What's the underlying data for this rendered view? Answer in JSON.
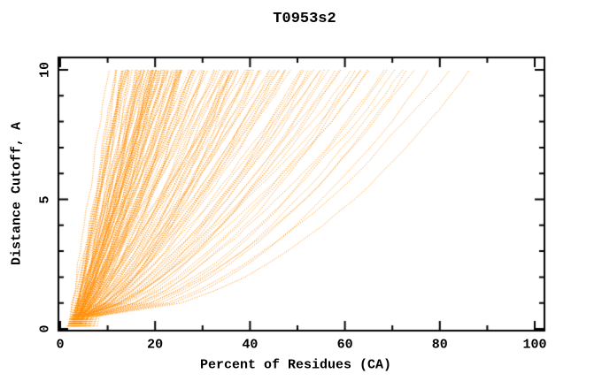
{
  "figure": {
    "title": "T0953s2"
  },
  "chart_data": {
    "type": "line",
    "title": "T0953s2",
    "xlabel": "Percent of Residues (CA)",
    "ylabel": "Distance Cutoff, A",
    "xlim": [
      0,
      102
    ],
    "ylim": [
      0,
      10.3
    ],
    "x_ticks": [
      0,
      20,
      40,
      60,
      80,
      100
    ],
    "x_minor_ticks": [
      10,
      30,
      50,
      70,
      90
    ],
    "y_ticks": [
      0,
      5,
      10
    ],
    "y_minor_ticks": [
      1,
      2,
      3,
      4,
      6,
      7,
      8,
      9
    ],
    "grid": false,
    "legend": null,
    "line_color": "#ff8c00",
    "line_style": "dotted",
    "cutoffs_A": [
      0.5,
      1.0,
      1.5,
      2.0,
      2.5,
      3.0,
      3.5,
      4.0,
      4.5,
      5.0,
      5.5,
      6.0,
      6.5,
      7.0,
      7.5,
      8.0,
      8.5,
      9.0,
      9.5,
      10.0
    ],
    "curve_model": "pct(d) = start + (end - start) * ((d - 0.5) / 9.5) ^ shape ; one curve per predicted model",
    "curves": [
      [
        2.3,
        11,
        0.95
      ],
      [
        2.6,
        12,
        0.9
      ],
      [
        3,
        12.5,
        0.97
      ],
      [
        2.8,
        13,
        0.85
      ],
      [
        3.4,
        13.4,
        0.92
      ],
      [
        2.5,
        13.8,
        0.99
      ],
      [
        3.1,
        14.2,
        0.87
      ],
      [
        2.9,
        14.5,
        0.94
      ],
      [
        3.5,
        14.8,
        0.82
      ],
      [
        2.7,
        15.1,
        0.96
      ],
      [
        3.2,
        15.4,
        0.89
      ],
      [
        2.4,
        15.7,
        0.93
      ],
      [
        3.6,
        16,
        0.85
      ],
      [
        2.85,
        16.3,
        0.98
      ],
      [
        3.3,
        16.6,
        0.84
      ],
      [
        2.55,
        16.9,
        0.91
      ],
      [
        3.7,
        17.1,
        0.88
      ],
      [
        2.95,
        17.4,
        0.95
      ],
      [
        3.45,
        17.7,
        0.83
      ],
      [
        2.65,
        17.9,
        0.97
      ],
      [
        3.15,
        18.1,
        0.86
      ],
      [
        3.8,
        18.3,
        0.92
      ],
      [
        2.75,
        18.5,
        0.89
      ],
      [
        3.55,
        18.7,
        0.94
      ],
      [
        3.05,
        18.9,
        0.82
      ],
      [
        3.9,
        19.1,
        0.96
      ],
      [
        2.45,
        19.3,
        0.87
      ],
      [
        3.25,
        19.5,
        0.93
      ],
      [
        3.65,
        19.7,
        0.85
      ],
      [
        2.9,
        19.9,
        0.9
      ],
      [
        4.2,
        16.5,
        0.88
      ],
      [
        4,
        14,
        0.9
      ],
      [
        4.4,
        15.5,
        0.86
      ],
      [
        3.1,
        13.2,
        0.93
      ],
      [
        4.1,
        17.8,
        0.84
      ],
      [
        2.6,
        14.9,
        0.98
      ],
      [
        3.75,
        19.4,
        0.81
      ],
      [
        3.4,
        12.8,
        0.95
      ],
      [
        4.3,
        18.6,
        0.87
      ],
      [
        2.5,
        12.2,
        0.92
      ],
      [
        3.4,
        34.5,
        0.8
      ],
      [
        4,
        34,
        0.85
      ],
      [
        4.8,
        33.5,
        0.75
      ],
      [
        3.2,
        33,
        0.9
      ],
      [
        5,
        32.5,
        0.72
      ],
      [
        3.7,
        32,
        0.88
      ],
      [
        4.4,
        31.5,
        0.78
      ],
      [
        5.3,
        31,
        0.83
      ],
      [
        3.5,
        30.5,
        0.92
      ],
      [
        4.1,
        30,
        0.74
      ],
      [
        4.9,
        29.5,
        0.86
      ],
      [
        3.3,
        29,
        0.8
      ],
      [
        5.1,
        28.5,
        0.76
      ],
      [
        3.8,
        28,
        0.9
      ],
      [
        4.5,
        27.8,
        0.82
      ],
      [
        3.1,
        27.5,
        0.87
      ],
      [
        5.4,
        27.2,
        0.73
      ],
      [
        4.2,
        27,
        0.91
      ],
      [
        3.6,
        26.8,
        0.79
      ],
      [
        4.7,
        26.5,
        0.85
      ],
      [
        3.9,
        26.2,
        0.75
      ],
      [
        5.2,
        26,
        0.88
      ],
      [
        3.4,
        25.8,
        0.81
      ],
      [
        4.3,
        25.5,
        0.93
      ],
      [
        3.7,
        25.2,
        0.77
      ],
      [
        4.8,
        25,
        0.84
      ],
      [
        3.2,
        24.8,
        0.89
      ],
      [
        4.6,
        24.5,
        0.74
      ],
      [
        3.95,
        24.2,
        0.86
      ],
      [
        5,
        24,
        0.8
      ],
      [
        3.5,
        23.8,
        0.9
      ],
      [
        4.25,
        23.5,
        0.76
      ],
      [
        3.8,
        23.2,
        0.87
      ],
      [
        4.55,
        23,
        0.82
      ],
      [
        3.3,
        22.8,
        0.92
      ],
      [
        4.9,
        22.5,
        0.78
      ],
      [
        3.65,
        22.2,
        0.85
      ],
      [
        4.35,
        22,
        0.8
      ],
      [
        3.45,
        21.8,
        0.88
      ],
      [
        5.1,
        21.5,
        0.75
      ],
      [
        3.9,
        21.2,
        0.83
      ],
      [
        4.6,
        21,
        0.9
      ],
      [
        3.25,
        20.8,
        0.79
      ],
      [
        4.15,
        20.6,
        0.86
      ],
      [
        3.75,
        20.4,
        0.81
      ],
      [
        4.45,
        20.2,
        0.93
      ],
      [
        3.55,
        20,
        0.77
      ],
      [
        4.7,
        20,
        0.84
      ],
      [
        3.35,
        20.5,
        0.9
      ],
      [
        4.05,
        21.7,
        0.8
      ],
      [
        4.2,
        49,
        0.7
      ],
      [
        5,
        48,
        0.75
      ],
      [
        3.8,
        47.5,
        0.65
      ],
      [
        6,
        47,
        0.8
      ],
      [
        4.6,
        46,
        0.72
      ],
      [
        5.5,
        45.5,
        0.68
      ],
      [
        3.6,
        45,
        0.78
      ],
      [
        4.9,
        44,
        0.74
      ],
      [
        5.8,
        43.5,
        0.66
      ],
      [
        4,
        43,
        0.82
      ],
      [
        6.2,
        42.5,
        0.7
      ],
      [
        3.9,
        42,
        0.76
      ],
      [
        5.2,
        41.5,
        0.64
      ],
      [
        4.4,
        41,
        0.8
      ],
      [
        5.9,
        40.5,
        0.73
      ],
      [
        3.7,
        40,
        0.68
      ],
      [
        4.8,
        39.5,
        0.77
      ],
      [
        5.4,
        39,
        0.71
      ],
      [
        4.1,
        38.5,
        0.84
      ],
      [
        6.1,
        38,
        0.66
      ],
      [
        3.5,
        37.5,
        0.74
      ],
      [
        5,
        37,
        0.79
      ],
      [
        4.5,
        36.5,
        0.69
      ],
      [
        5.6,
        36,
        0.75
      ],
      [
        3.8,
        35.8,
        0.83
      ],
      [
        4.7,
        35.5,
        0.67
      ],
      [
        5.3,
        35.2,
        0.72
      ],
      [
        4.3,
        35,
        0.78
      ],
      [
        6,
        35,
        0.64
      ],
      [
        3.6,
        36.8,
        0.81
      ],
      [
        5.5,
        68,
        0.6
      ],
      [
        6,
        66,
        0.62
      ],
      [
        4.8,
        65,
        0.65
      ],
      [
        7,
        64,
        0.58
      ],
      [
        5.2,
        63,
        0.7
      ],
      [
        6.4,
        62,
        0.6
      ],
      [
        4.5,
        61,
        0.68
      ],
      [
        5.8,
        60,
        0.63
      ],
      [
        6.6,
        59,
        0.72
      ],
      [
        5,
        58,
        0.66
      ],
      [
        7.2,
        57,
        0.6
      ],
      [
        4.6,
        56,
        0.7
      ],
      [
        5.4,
        55,
        0.64
      ],
      [
        6.1,
        54,
        0.74
      ],
      [
        4.9,
        53,
        0.62
      ],
      [
        5.7,
        52,
        0.68
      ],
      [
        6.3,
        51,
        0.71
      ],
      [
        5.1,
        50.5,
        0.65
      ],
      [
        6.9,
        50,
        0.6
      ],
      [
        4.4,
        52.5,
        0.73
      ],
      [
        8.5,
        87,
        0.52
      ],
      [
        7.5,
        82,
        0.55
      ],
      [
        8,
        78,
        0.5
      ],
      [
        6.5,
        75,
        0.58
      ],
      [
        7,
        72,
        0.55
      ],
      [
        6,
        71,
        0.6
      ],
      [
        7.8,
        74,
        0.53
      ],
      [
        6.8,
        70,
        0.57
      ]
    ]
  }
}
